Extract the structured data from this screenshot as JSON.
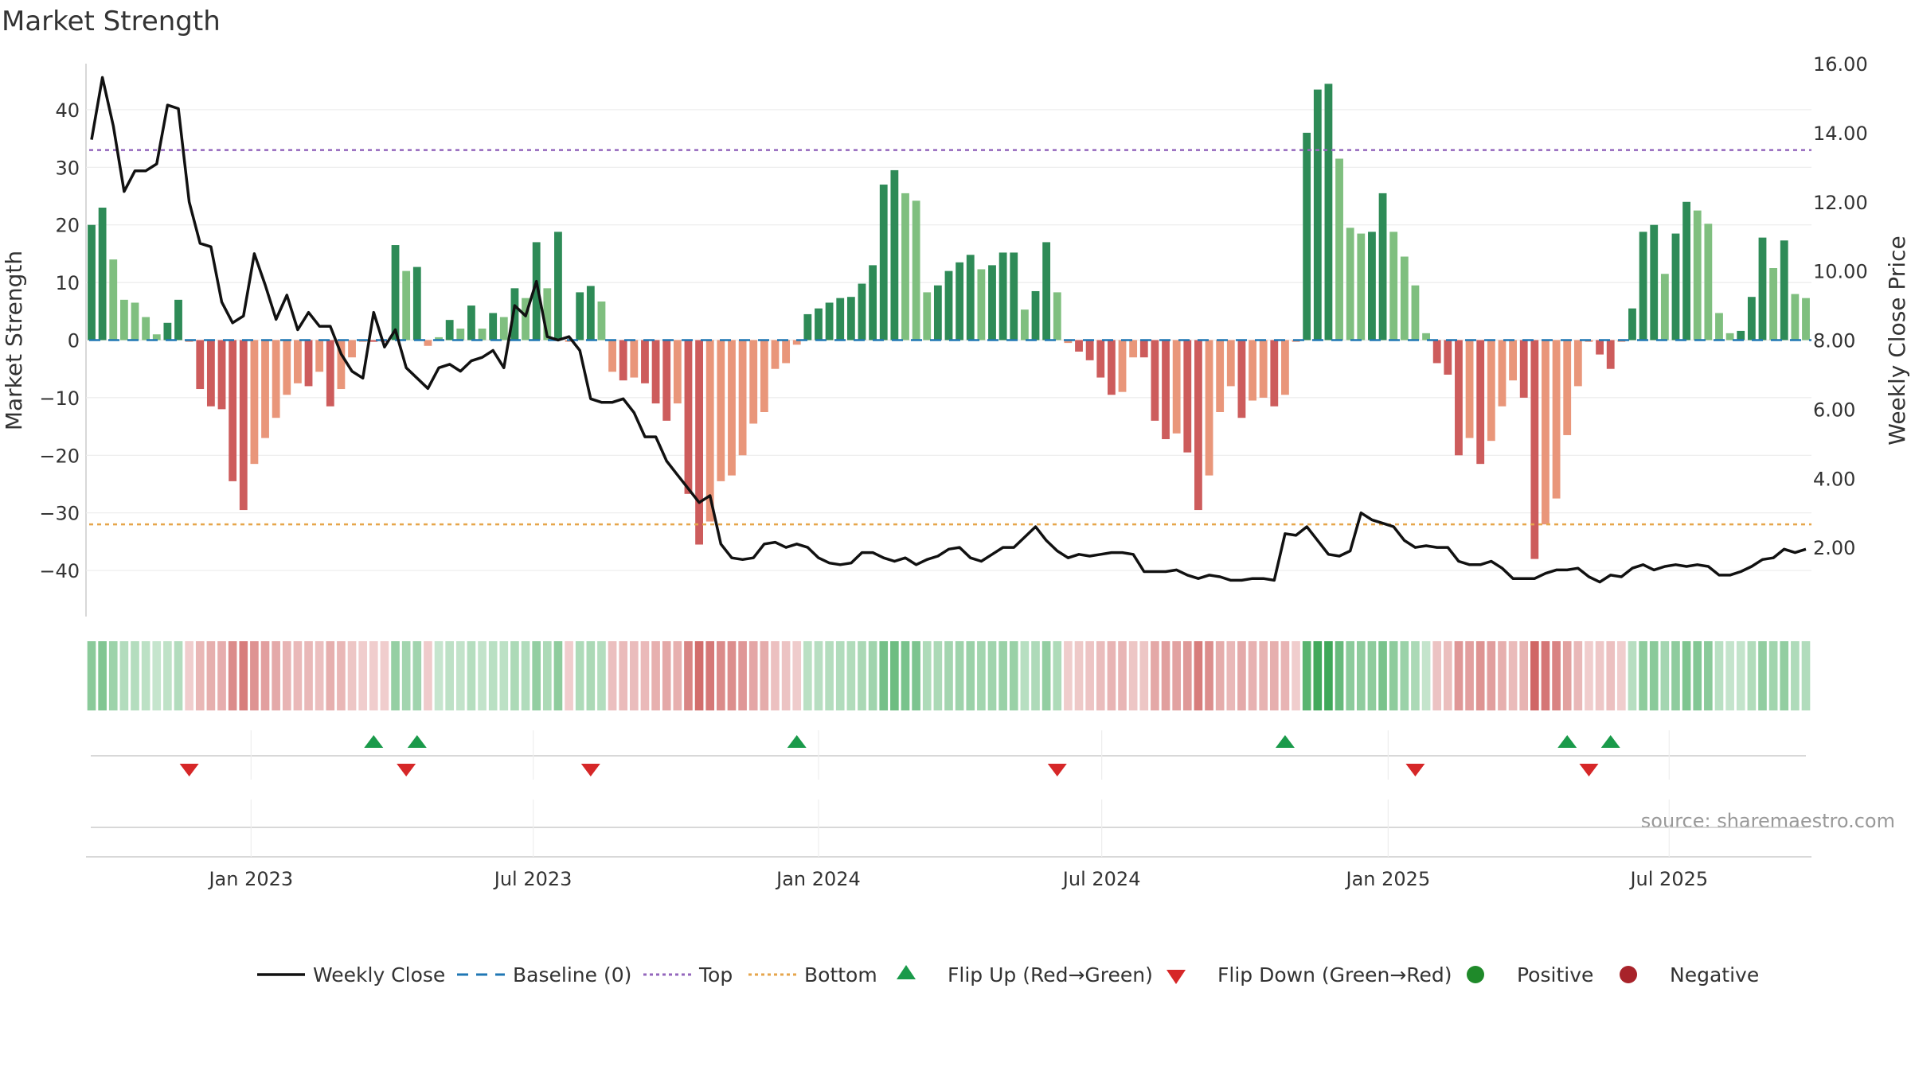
{
  "chart_data": {
    "type": "bar",
    "title": "Market Strength",
    "ylabel_left": "Market Strength",
    "ylabel_right": "Weekly Close Price",
    "ylim_left": [
      -48,
      48
    ],
    "ylim_right": [
      0,
      16
    ],
    "yticks_left": [
      {
        "value": 40,
        "label": "40"
      },
      {
        "value": 30,
        "label": "30"
      },
      {
        "value": 20,
        "label": "20"
      },
      {
        "value": 10,
        "label": "10"
      },
      {
        "value": 0,
        "label": "0"
      },
      {
        "value": -10,
        "label": "−10"
      },
      {
        "value": -20,
        "label": "−20"
      },
      {
        "value": -30,
        "label": "−30"
      },
      {
        "value": -40,
        "label": "−40"
      }
    ],
    "yticks_right": [
      {
        "value": 16,
        "label": "16.00"
      },
      {
        "value": 14,
        "label": "14.00"
      },
      {
        "value": 12,
        "label": "12.00"
      },
      {
        "value": 10,
        "label": "10.00"
      },
      {
        "value": 8,
        "label": "8.00"
      },
      {
        "value": 6,
        "label": "6.00"
      },
      {
        "value": 4,
        "label": "4.00"
      },
      {
        "value": 2,
        "label": "2.00"
      }
    ],
    "top_level": 33,
    "bottom_level": -32,
    "x_start_index": 0,
    "x_end_index": 157,
    "xticks": [
      {
        "index": 14.7,
        "label": "Jan 2023"
      },
      {
        "index": 40.7,
        "label": "Jul 2023"
      },
      {
        "index": 67.0,
        "label": "Jan 2024"
      },
      {
        "index": 93.1,
        "label": "Jul 2024"
      },
      {
        "index": 119.5,
        "label": "Jan 2025"
      },
      {
        "index": 145.4,
        "label": "Jul 2025"
      }
    ],
    "strength": [
      20,
      23,
      14,
      7,
      6.5,
      4,
      1,
      3,
      7,
      -0.3,
      -8.5,
      -11.5,
      -12,
      -24.5,
      -29.5,
      -21.5,
      -17,
      -13.5,
      -9.5,
      -7.5,
      -8,
      -5.5,
      -11.5,
      -8.5,
      -3,
      -0.3,
      -0.3,
      -0.3,
      16.5,
      12,
      12.7,
      -1,
      0.5,
      3.5,
      2,
      6,
      2,
      4.7,
      4,
      9,
      7.3,
      17,
      9,
      18.8,
      -0.3,
      8.3,
      9.4,
      6.7,
      -5.5,
      -7,
      -6.5,
      -7.5,
      -11,
      -14,
      -11,
      -26.7,
      -35.5,
      -31.5,
      -24.5,
      -23.5,
      -20,
      -14.5,
      -12.5,
      -5,
      -4,
      -0.8,
      4.5,
      5.5,
      6.5,
      7.3,
      7.5,
      9.8,
      13,
      27,
      29.5,
      25.5,
      24.2,
      8.3,
      9.5,
      12,
      13.5,
      14.8,
      12.3,
      13,
      15.2,
      15.2,
      5.3,
      8.5,
      17,
      8.3,
      -0.5,
      -2,
      -3.5,
      -6.5,
      -9.5,
      -9,
      -3,
      -3,
      -14,
      -17.2,
      -16.2,
      -19.5,
      -29.5,
      -23.5,
      -12.5,
      -8,
      -13.5,
      -10.5,
      -10,
      -11.5,
      -9.5,
      -0.3,
      36,
      43.5,
      44.5,
      31.5,
      19.5,
      18.5,
      18.8,
      25.5,
      18.8,
      14.5,
      9.5,
      1.2,
      -4,
      -6,
      -20,
      -17,
      -21.5,
      -17.5,
      -11.5,
      -7,
      -10,
      -38,
      -32,
      -27.5,
      -16.5,
      -8,
      -0.3,
      -2.5,
      -5,
      -0.3,
      5.5,
      18.8,
      20,
      11.5,
      18.5,
      24,
      22.5,
      20.2,
      4.7,
      1.2,
      1.6,
      7.5,
      17.8,
      12.5,
      17.3,
      8,
      7.3
    ],
    "price": [
      13.8,
      15.6,
      14.2,
      12.3,
      12.9,
      12.9,
      13.1,
      14.8,
      14.7,
      12.0,
      10.8,
      10.7,
      9.1,
      8.5,
      8.7,
      10.5,
      9.6,
      8.6,
      9.3,
      8.3,
      8.8,
      8.4,
      8.4,
      7.6,
      7.1,
      6.9,
      8.8,
      7.8,
      8.3,
      7.2,
      6.9,
      6.6,
      7.2,
      7.3,
      7.1,
      7.4,
      7.5,
      7.7,
      7.2,
      9.0,
      8.7,
      9.7,
      8.1,
      8.0,
      8.1,
      7.7,
      6.3,
      6.2,
      6.2,
      6.3,
      5.9,
      5.2,
      5.2,
      4.5,
      4.1,
      3.7,
      3.3,
      3.5,
      2.1,
      1.7,
      1.65,
      1.7,
      2.1,
      2.15,
      2.0,
      2.1,
      2.0,
      1.7,
      1.55,
      1.5,
      1.55,
      1.85,
      1.85,
      1.7,
      1.6,
      1.7,
      1.5,
      1.65,
      1.75,
      1.95,
      2.0,
      1.7,
      1.6,
      1.8,
      2.0,
      2.0,
      2.3,
      2.6,
      2.2,
      1.9,
      1.7,
      1.8,
      1.75,
      1.8,
      1.85,
      1.85,
      1.8,
      1.3,
      1.3,
      1.3,
      1.35,
      1.2,
      1.1,
      1.2,
      1.15,
      1.05,
      1.05,
      1.1,
      1.1,
      1.05,
      2.4,
      2.35,
      2.6,
      2.2,
      1.8,
      1.75,
      1.9,
      3.0,
      2.8,
      2.7,
      2.6,
      2.2,
      2.0,
      2.05,
      2.0,
      2.0,
      1.6,
      1.5,
      1.5,
      1.6,
      1.4,
      1.1,
      1.1,
      1.1,
      1.25,
      1.35,
      1.35,
      1.4,
      1.15,
      1.0,
      1.2,
      1.15,
      1.4,
      1.5,
      1.35,
      1.45,
      1.5,
      1.45,
      1.5,
      1.45,
      1.2,
      1.2,
      1.3,
      1.45,
      1.65,
      1.7,
      1.95,
      1.85,
      1.95
    ],
    "flip_up_indices": [
      26,
      30,
      65,
      110,
      136,
      140
    ],
    "flip_down_indices": [
      9,
      29,
      46,
      89,
      122,
      138
    ],
    "legend": [
      {
        "label": "Weekly Close",
        "symbol": "line-solid"
      },
      {
        "label": "Baseline (0)",
        "symbol": "line-dash"
      },
      {
        "label": "Top",
        "symbol": "line-dot-top"
      },
      {
        "label": "Bottom",
        "symbol": "line-dot-bottom"
      },
      {
        "label": "Flip Up (Red→Green)",
        "symbol": "triangle-up"
      },
      {
        "label": "Flip Down (Green→Red)",
        "symbol": "triangle-down"
      },
      {
        "label": "Positive",
        "symbol": "circle-green"
      },
      {
        "label": "Negative",
        "symbol": "circle-red"
      }
    ],
    "source_note": "source: sharemaestro.com"
  },
  "colors": {
    "pos_strong": "#2e8b57",
    "pos_weak": "#7fbf7f",
    "neg_strong": "#cd5c5c",
    "neg_weak": "#e9967a",
    "price_line": "#111111",
    "baseline": "#1f77b4",
    "top": "#9467bd",
    "bottom": "#e6a64c",
    "flip_up": "#1a9a4a",
    "flip_down": "#d62728",
    "positive_dot": "#1f8a2a",
    "negative_dot": "#a8232a"
  }
}
